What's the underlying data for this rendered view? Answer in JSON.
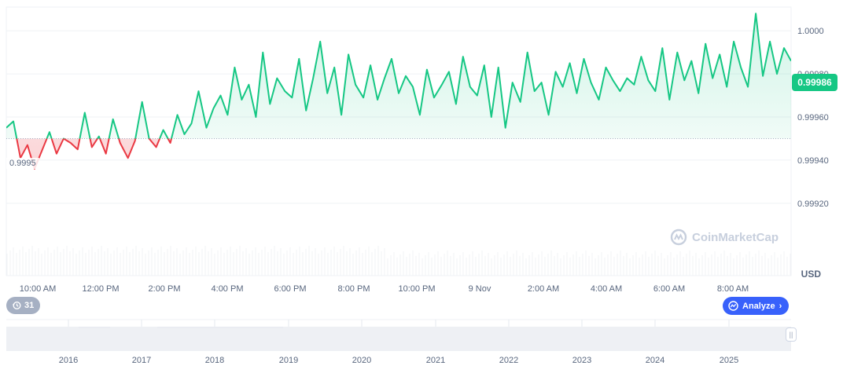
{
  "chart_data": {
    "type": "line",
    "ylim": [
      0.99905,
      1.00011
    ],
    "y_ticks": [
      "1.0000",
      "0.99980",
      "0.99960",
      "0.99940",
      "0.99920"
    ],
    "y_tick_values": [
      1.0,
      0.9998,
      0.9996,
      0.9994,
      0.9992
    ],
    "x_ticks": [
      "10:00 AM",
      "12:00 PM",
      "2:00 PM",
      "4:00 PM",
      "6:00 PM",
      "8:00 PM",
      "10:00 PM",
      "9 Nov",
      "2:00 AM",
      "4:00 AM",
      "6:00 AM",
      "8:00 AM"
    ],
    "baseline": 0.9995,
    "baseline_label": "0.9995",
    "current_price": "0.99986",
    "currency": "USD",
    "colors": {
      "up": "#16c784",
      "down": "#ea3943",
      "grid": "#eff2f5",
      "text": "#58667e"
    },
    "x": [
      0.0,
      0.009,
      0.018,
      0.027,
      0.036,
      0.045,
      0.055,
      0.064,
      0.073,
      0.082,
      0.091,
      0.1,
      0.109,
      0.118,
      0.127,
      0.136,
      0.145,
      0.155,
      0.164,
      0.173,
      0.182,
      0.191,
      0.2,
      0.209,
      0.218,
      0.227,
      0.236,
      0.245,
      0.255,
      0.264,
      0.273,
      0.282,
      0.291,
      0.3,
      0.309,
      0.318,
      0.327,
      0.336,
      0.345,
      0.355,
      0.364,
      0.373,
      0.382,
      0.391,
      0.4,
      0.409,
      0.418,
      0.427,
      0.436,
      0.445,
      0.455,
      0.464,
      0.473,
      0.482,
      0.491,
      0.5,
      0.509,
      0.518,
      0.527,
      0.536,
      0.545,
      0.555,
      0.564,
      0.573,
      0.582,
      0.591,
      0.6,
      0.609,
      0.618,
      0.627,
      0.636,
      0.645,
      0.655,
      0.664,
      0.673,
      0.682,
      0.691,
      0.7,
      0.709,
      0.718,
      0.727,
      0.736,
      0.745,
      0.755,
      0.764,
      0.773,
      0.782,
      0.791,
      0.8,
      0.809,
      0.818,
      0.827,
      0.836,
      0.845,
      0.855,
      0.864,
      0.873,
      0.882,
      0.891,
      0.9,
      0.909,
      0.918,
      0.927,
      0.936,
      0.945,
      0.955,
      0.964,
      0.973,
      0.982,
      0.991,
      1.0
    ],
    "values": [
      0.99955,
      0.99958,
      0.99941,
      0.99947,
      0.99936,
      0.99944,
      0.99953,
      0.99943,
      0.9995,
      0.99948,
      0.99945,
      0.99962,
      0.99946,
      0.99951,
      0.99943,
      0.99959,
      0.99948,
      0.99941,
      0.99949,
      0.99967,
      0.9995,
      0.99946,
      0.99954,
      0.99948,
      0.99961,
      0.99952,
      0.99957,
      0.99972,
      0.99955,
      0.99964,
      0.9997,
      0.99961,
      0.99983,
      0.99968,
      0.99975,
      0.9996,
      0.9999,
      0.99966,
      0.99978,
      0.99972,
      0.99969,
      0.99987,
      0.99963,
      0.99978,
      0.99995,
      0.99971,
      0.99983,
      0.99961,
      0.99989,
      0.99975,
      0.99969,
      0.99984,
      0.99968,
      0.99978,
      0.99987,
      0.99971,
      0.99979,
      0.99974,
      0.99961,
      0.99982,
      0.99969,
      0.99975,
      0.99981,
      0.99966,
      0.99988,
      0.99974,
      0.9997,
      0.99984,
      0.9996,
      0.99983,
      0.99955,
      0.99976,
      0.99967,
      0.9999,
      0.99972,
      0.99976,
      0.99961,
      0.99981,
      0.99974,
      0.99985,
      0.99971,
      0.99987,
      0.99976,
      0.99968,
      0.99983,
      0.99977,
      0.99972,
      0.99978,
      0.99975,
      0.99988,
      0.99977,
      0.99972,
      0.99992,
      0.99968,
      0.9999,
      0.99977,
      0.99986,
      0.99971,
      0.99994,
      0.99978,
      0.99989,
      0.99974,
      0.99995,
      0.99983,
      0.99974,
      1.00008,
      0.99979,
      0.99995,
      0.9998,
      0.99992,
      0.99986
    ]
  },
  "y_axis_unit": "USD",
  "watermark": {
    "text": "CoinMarketCap",
    "icon": "coinmarketcap-logo-icon"
  },
  "controls": {
    "events_count": "31",
    "events_icon": "history-icon",
    "analyze_label": "Analyze",
    "analyze_icon": "analyze-icon",
    "analyze_chevron": "›",
    "handle_glyph": "||"
  },
  "navigator": {
    "years": [
      "2016",
      "2017",
      "2018",
      "2019",
      "2020",
      "2021",
      "2022",
      "2023",
      "2024",
      "2025"
    ]
  }
}
